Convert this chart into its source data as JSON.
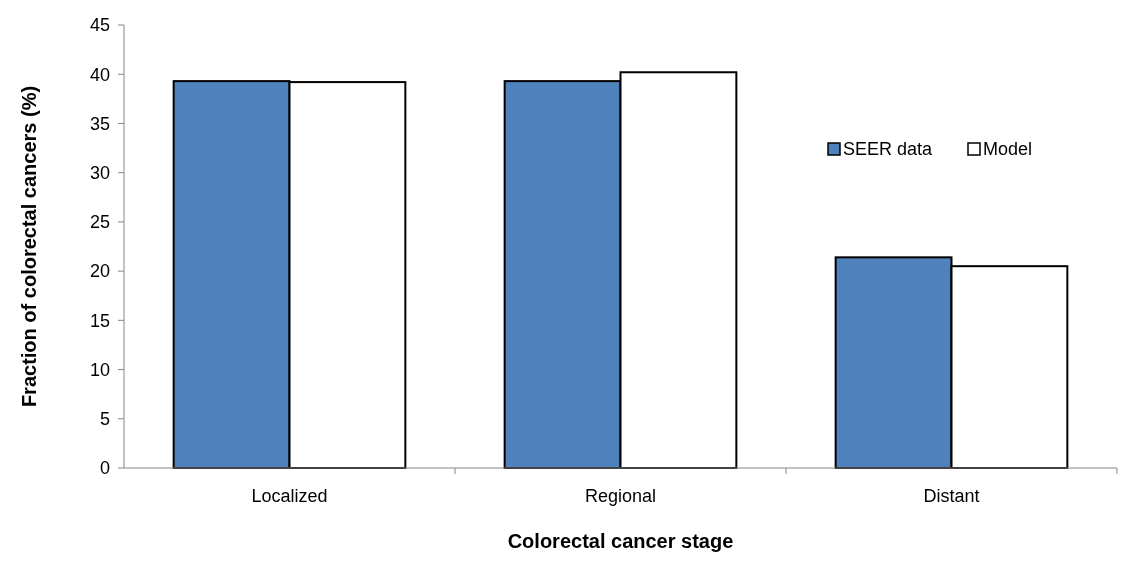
{
  "chart_data": {
    "type": "bar",
    "xlabel": "Colorectal cancer stage",
    "ylabel": "Fraction of colorectal cancers (%)",
    "categories": [
      "Localized",
      "Regional",
      "Distant"
    ],
    "series": [
      {
        "name": "SEER data",
        "color": "#4f81bd",
        "values": [
          39.3,
          39.3,
          21.4
        ]
      },
      {
        "name": "Model",
        "color": "#ffffff",
        "values": [
          39.2,
          40.2,
          20.5
        ]
      }
    ],
    "ylim": [
      0,
      45
    ],
    "yticks": [
      0,
      5,
      10,
      15,
      20,
      25,
      30,
      35,
      40,
      45
    ],
    "grid": false,
    "legend": "right"
  }
}
